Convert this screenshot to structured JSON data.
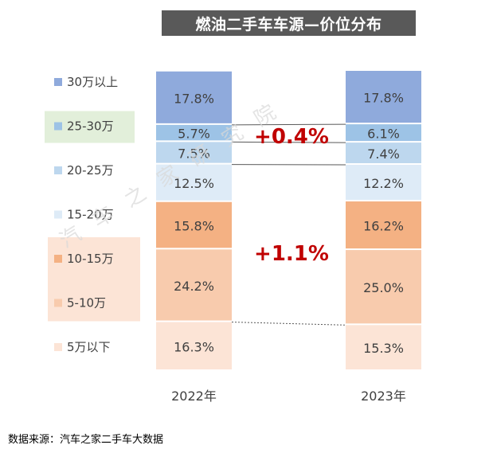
{
  "title": "燃油二手车车源—价位分布",
  "source": "数据来源：汽车之家二手车大数据",
  "watermark": "汽车之家研究院",
  "colors": {
    "title_bg": "#595959",
    "delta_text": "#C00000",
    "legend_highlight_green": "#E2EFDA",
    "legend_highlight_orange": "#FCE4D6"
  },
  "chart_data": {
    "type": "bar",
    "stacked": true,
    "percent_stacked": true,
    "title": "燃油二手车车源—价位分布",
    "categories": [
      "2022年",
      "2023年"
    ],
    "series": [
      {
        "name": "5万以下",
        "values": [
          16.3,
          15.3
        ],
        "labels": [
          "16.3%",
          "15.3%"
        ],
        "color": "#FCE4D6"
      },
      {
        "name": "5-10万",
        "values": [
          24.2,
          25.0
        ],
        "labels": [
          "24.2%",
          "25.0%"
        ],
        "color": "#F8CBAD"
      },
      {
        "name": "10-15万",
        "values": [
          15.8,
          16.2
        ],
        "labels": [
          "15.8%",
          "16.2%"
        ],
        "color": "#F4B183"
      },
      {
        "name": "15-20万",
        "values": [
          12.5,
          12.2
        ],
        "labels": [
          "12.5%",
          "12.2%"
        ],
        "color": "#DEEBF7"
      },
      {
        "name": "20-25万",
        "values": [
          7.5,
          7.4
        ],
        "labels": [
          "7.5%",
          "7.4%"
        ],
        "color": "#BDD7EE"
      },
      {
        "name": "25-30万",
        "values": [
          5.7,
          6.1
        ],
        "labels": [
          "5.7%",
          "6.1%"
        ],
        "color": "#9DC3E6"
      },
      {
        "name": "30万以上",
        "values": [
          17.8,
          17.8
        ],
        "labels": [
          "17.8%",
          "17.8%"
        ],
        "color": "#8FAADC"
      }
    ],
    "annotations": [
      {
        "text": "+0.4%",
        "series": "25-30万"
      },
      {
        "text": "+1.1%",
        "series": "5-10万~10-15万"
      }
    ],
    "legend": {
      "position": "left",
      "order": [
        "30万以上",
        "25-30万",
        "20-25万",
        "15-20万",
        "10-15万",
        "5-10万",
        "5万以下"
      ],
      "highlight_green": [
        "25-30万"
      ],
      "highlight_orange": [
        "10-15万",
        "5-10万"
      ]
    },
    "ylim": [
      0,
      100
    ],
    "grid": false
  }
}
